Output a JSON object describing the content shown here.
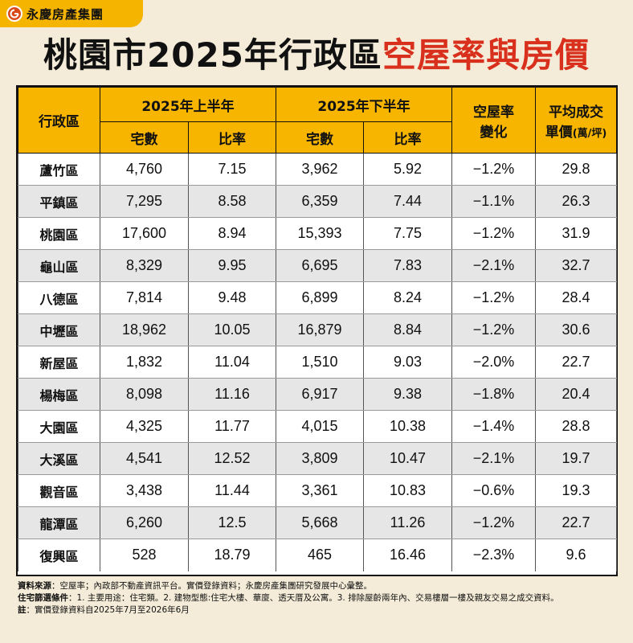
{
  "brand": {
    "name": "永慶房產集團"
  },
  "title": {
    "prefix": "桃園市2025年行政區",
    "highlight": "空屋率與房價"
  },
  "colors": {
    "header": "#f7b500",
    "accent": "#d8301c",
    "background": "#f4ecd8",
    "row_alt": "#e6e6e6"
  },
  "table": {
    "headers": {
      "district": "行政區",
      "h1": "2025年上半年",
      "h2": "2025年下半年",
      "change_line1": "空屋率",
      "change_line2": "變化",
      "price_line1": "平均成交",
      "price_line2": "單價",
      "price_unit": "(萬/坪)",
      "count": "宅數",
      "rate": "比率"
    },
    "rows": [
      {
        "district": "蘆竹區",
        "h1_count": "4,760",
        "h1_rate": "7.15",
        "h2_count": "3,962",
        "h2_rate": "5.92",
        "change": "−1.2%",
        "price": "29.8"
      },
      {
        "district": "平鎮區",
        "h1_count": "7,295",
        "h1_rate": "8.58",
        "h2_count": "6,359",
        "h2_rate": "7.44",
        "change": "−1.1%",
        "price": "26.3"
      },
      {
        "district": "桃園區",
        "h1_count": "17,600",
        "h1_rate": "8.94",
        "h2_count": "15,393",
        "h2_rate": "7.75",
        "change": "−1.2%",
        "price": "31.9"
      },
      {
        "district": "龜山區",
        "h1_count": "8,329",
        "h1_rate": "9.95",
        "h2_count": "6,695",
        "h2_rate": "7.83",
        "change": "−2.1%",
        "price": "32.7"
      },
      {
        "district": "八德區",
        "h1_count": "7,814",
        "h1_rate": "9.48",
        "h2_count": "6,899",
        "h2_rate": "8.24",
        "change": "−1.2%",
        "price": "28.4"
      },
      {
        "district": "中壢區",
        "h1_count": "18,962",
        "h1_rate": "10.05",
        "h2_count": "16,879",
        "h2_rate": "8.84",
        "change": "−1.2%",
        "price": "30.6"
      },
      {
        "district": "新屋區",
        "h1_count": "1,832",
        "h1_rate": "11.04",
        "h2_count": "1,510",
        "h2_rate": "9.03",
        "change": "−2.0%",
        "price": "22.7"
      },
      {
        "district": "楊梅區",
        "h1_count": "8,098",
        "h1_rate": "11.16",
        "h2_count": "6,917",
        "h2_rate": "9.38",
        "change": "−1.8%",
        "price": "20.4"
      },
      {
        "district": "大園區",
        "h1_count": "4,325",
        "h1_rate": "11.77",
        "h2_count": "4,015",
        "h2_rate": "10.38",
        "change": "−1.4%",
        "price": "28.8"
      },
      {
        "district": "大溪區",
        "h1_count": "4,541",
        "h1_rate": "12.52",
        "h2_count": "3,809",
        "h2_rate": "10.47",
        "change": "−2.1%",
        "price": "19.7"
      },
      {
        "district": "觀音區",
        "h1_count": "3,438",
        "h1_rate": "11.44",
        "h2_count": "3,361",
        "h2_rate": "10.83",
        "change": "−0.6%",
        "price": "19.3"
      },
      {
        "district": "龍潭區",
        "h1_count": "6,260",
        "h1_rate": "12.5",
        "h2_count": "5,668",
        "h2_rate": "11.26",
        "change": "−1.2%",
        "price": "22.7"
      },
      {
        "district": "復興區",
        "h1_count": "528",
        "h1_rate": "18.79",
        "h2_count": "465",
        "h2_rate": "16.46",
        "change": "−2.3%",
        "price": "9.6"
      }
    ]
  },
  "notes": {
    "source_label": "資料來源",
    "source_text": "：空屋率；內政部不動產資訊平台。實價登錄資料；永慶房產集團研究發展中心彙整。",
    "filter_label": "住宅篩選條件",
    "filter_text": "：1. 主要用途：住宅類。2. 建物型態:住宅大樓、華廈、透天厝及公寓。3. 排除屋齡兩年內、交易樓層一樓及親友交易之成交資料。",
    "note_label": "註",
    "note_text": "：實價登錄資料自2025年7月至2026年6月"
  }
}
